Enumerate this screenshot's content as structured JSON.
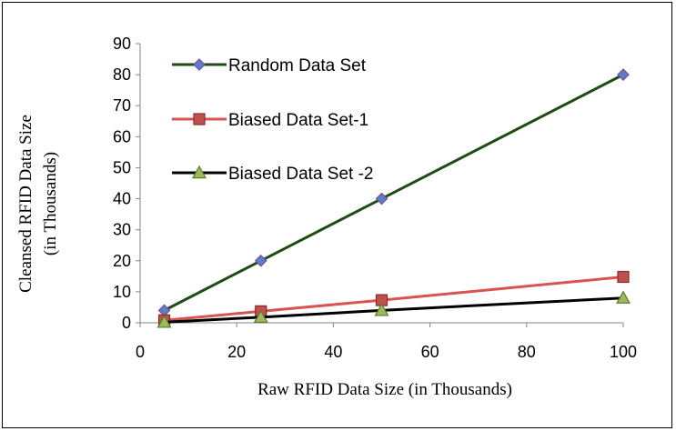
{
  "chart_data": {
    "type": "line",
    "xlabel": "Raw RFID Data Size (in Thousands)",
    "ylabel_lines": [
      "Cleansed RFID Data Size",
      "(in Thousands)"
    ],
    "xlim": [
      0,
      100
    ],
    "ylim": [
      0,
      90
    ],
    "xticks": [
      "0",
      "20",
      "40",
      "60",
      "80",
      "100"
    ],
    "yticks": [
      "0",
      "10",
      "20",
      "30",
      "40",
      "50",
      "60",
      "70",
      "80",
      "90"
    ],
    "grid": false,
    "legend_position": "top-left",
    "series": [
      {
        "name": "Random Data Set",
        "x": [
          5,
          25,
          50,
          100
        ],
        "y": [
          4,
          20,
          40,
          80
        ],
        "line_color": "#1e4d14",
        "marker": "diamond",
        "marker_color": "#5b7fc9"
      },
      {
        "name": "Biased Data Set-1",
        "x": [
          5,
          25,
          50,
          100
        ],
        "y": [
          0.8,
          3.7,
          7.3,
          14.8
        ],
        "line_color": "#d9534f",
        "marker": "square",
        "marker_color": "#c0504d"
      },
      {
        "name": "Biased Data Set -2",
        "x": [
          5,
          25,
          50,
          100
        ],
        "y": [
          0.2,
          1.8,
          4,
          8
        ],
        "line_color": "#000000",
        "marker": "triangle",
        "marker_color": "#9bbb59"
      }
    ]
  }
}
